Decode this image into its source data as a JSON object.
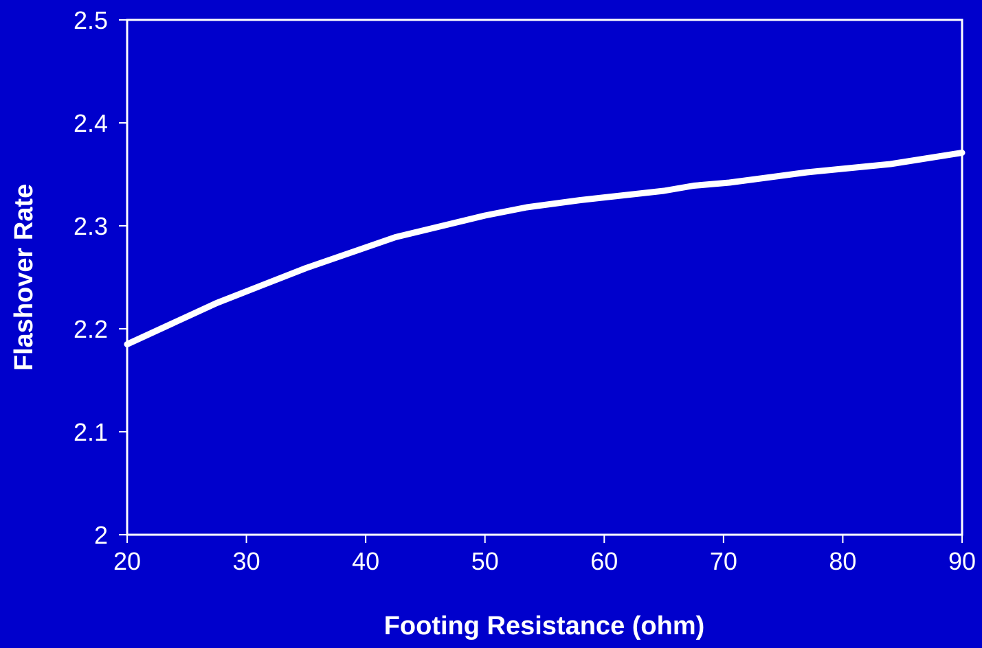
{
  "chart_data": {
    "type": "line",
    "title": "",
    "xlabel": "Footing Resistance (ohm)",
    "ylabel": "Flashover Rate",
    "xlim": [
      20,
      90
    ],
    "ylim": [
      2,
      2.5
    ],
    "x_ticks": [
      20,
      30,
      40,
      50,
      60,
      70,
      80,
      90
    ],
    "x_tick_labels": [
      "20",
      "30",
      "40",
      "50",
      "60",
      "70",
      "80",
      "90"
    ],
    "y_ticks": [
      2,
      2.1,
      2.2,
      2.3,
      2.4,
      2.5
    ],
    "y_tick_labels": [
      "2",
      "2.1",
      "2.2",
      "2.3",
      "2.4",
      "2.5"
    ],
    "grid": false,
    "legend": "none",
    "series": [
      {
        "color": "#FFFFFF",
        "x": [
          20,
          27.5,
          35,
          42.5,
          50,
          53.5,
          58,
          65,
          67.5,
          70.5,
          77,
          84,
          90
        ],
        "y": [
          2.185,
          2.225,
          2.259,
          2.289,
          2.31,
          2.318,
          2.325,
          2.334,
          2.339,
          2.342,
          2.352,
          2.36,
          2.371
        ]
      }
    ],
    "colors": {
      "background": "#0000CC",
      "foreground": "#FFFFFF"
    }
  }
}
